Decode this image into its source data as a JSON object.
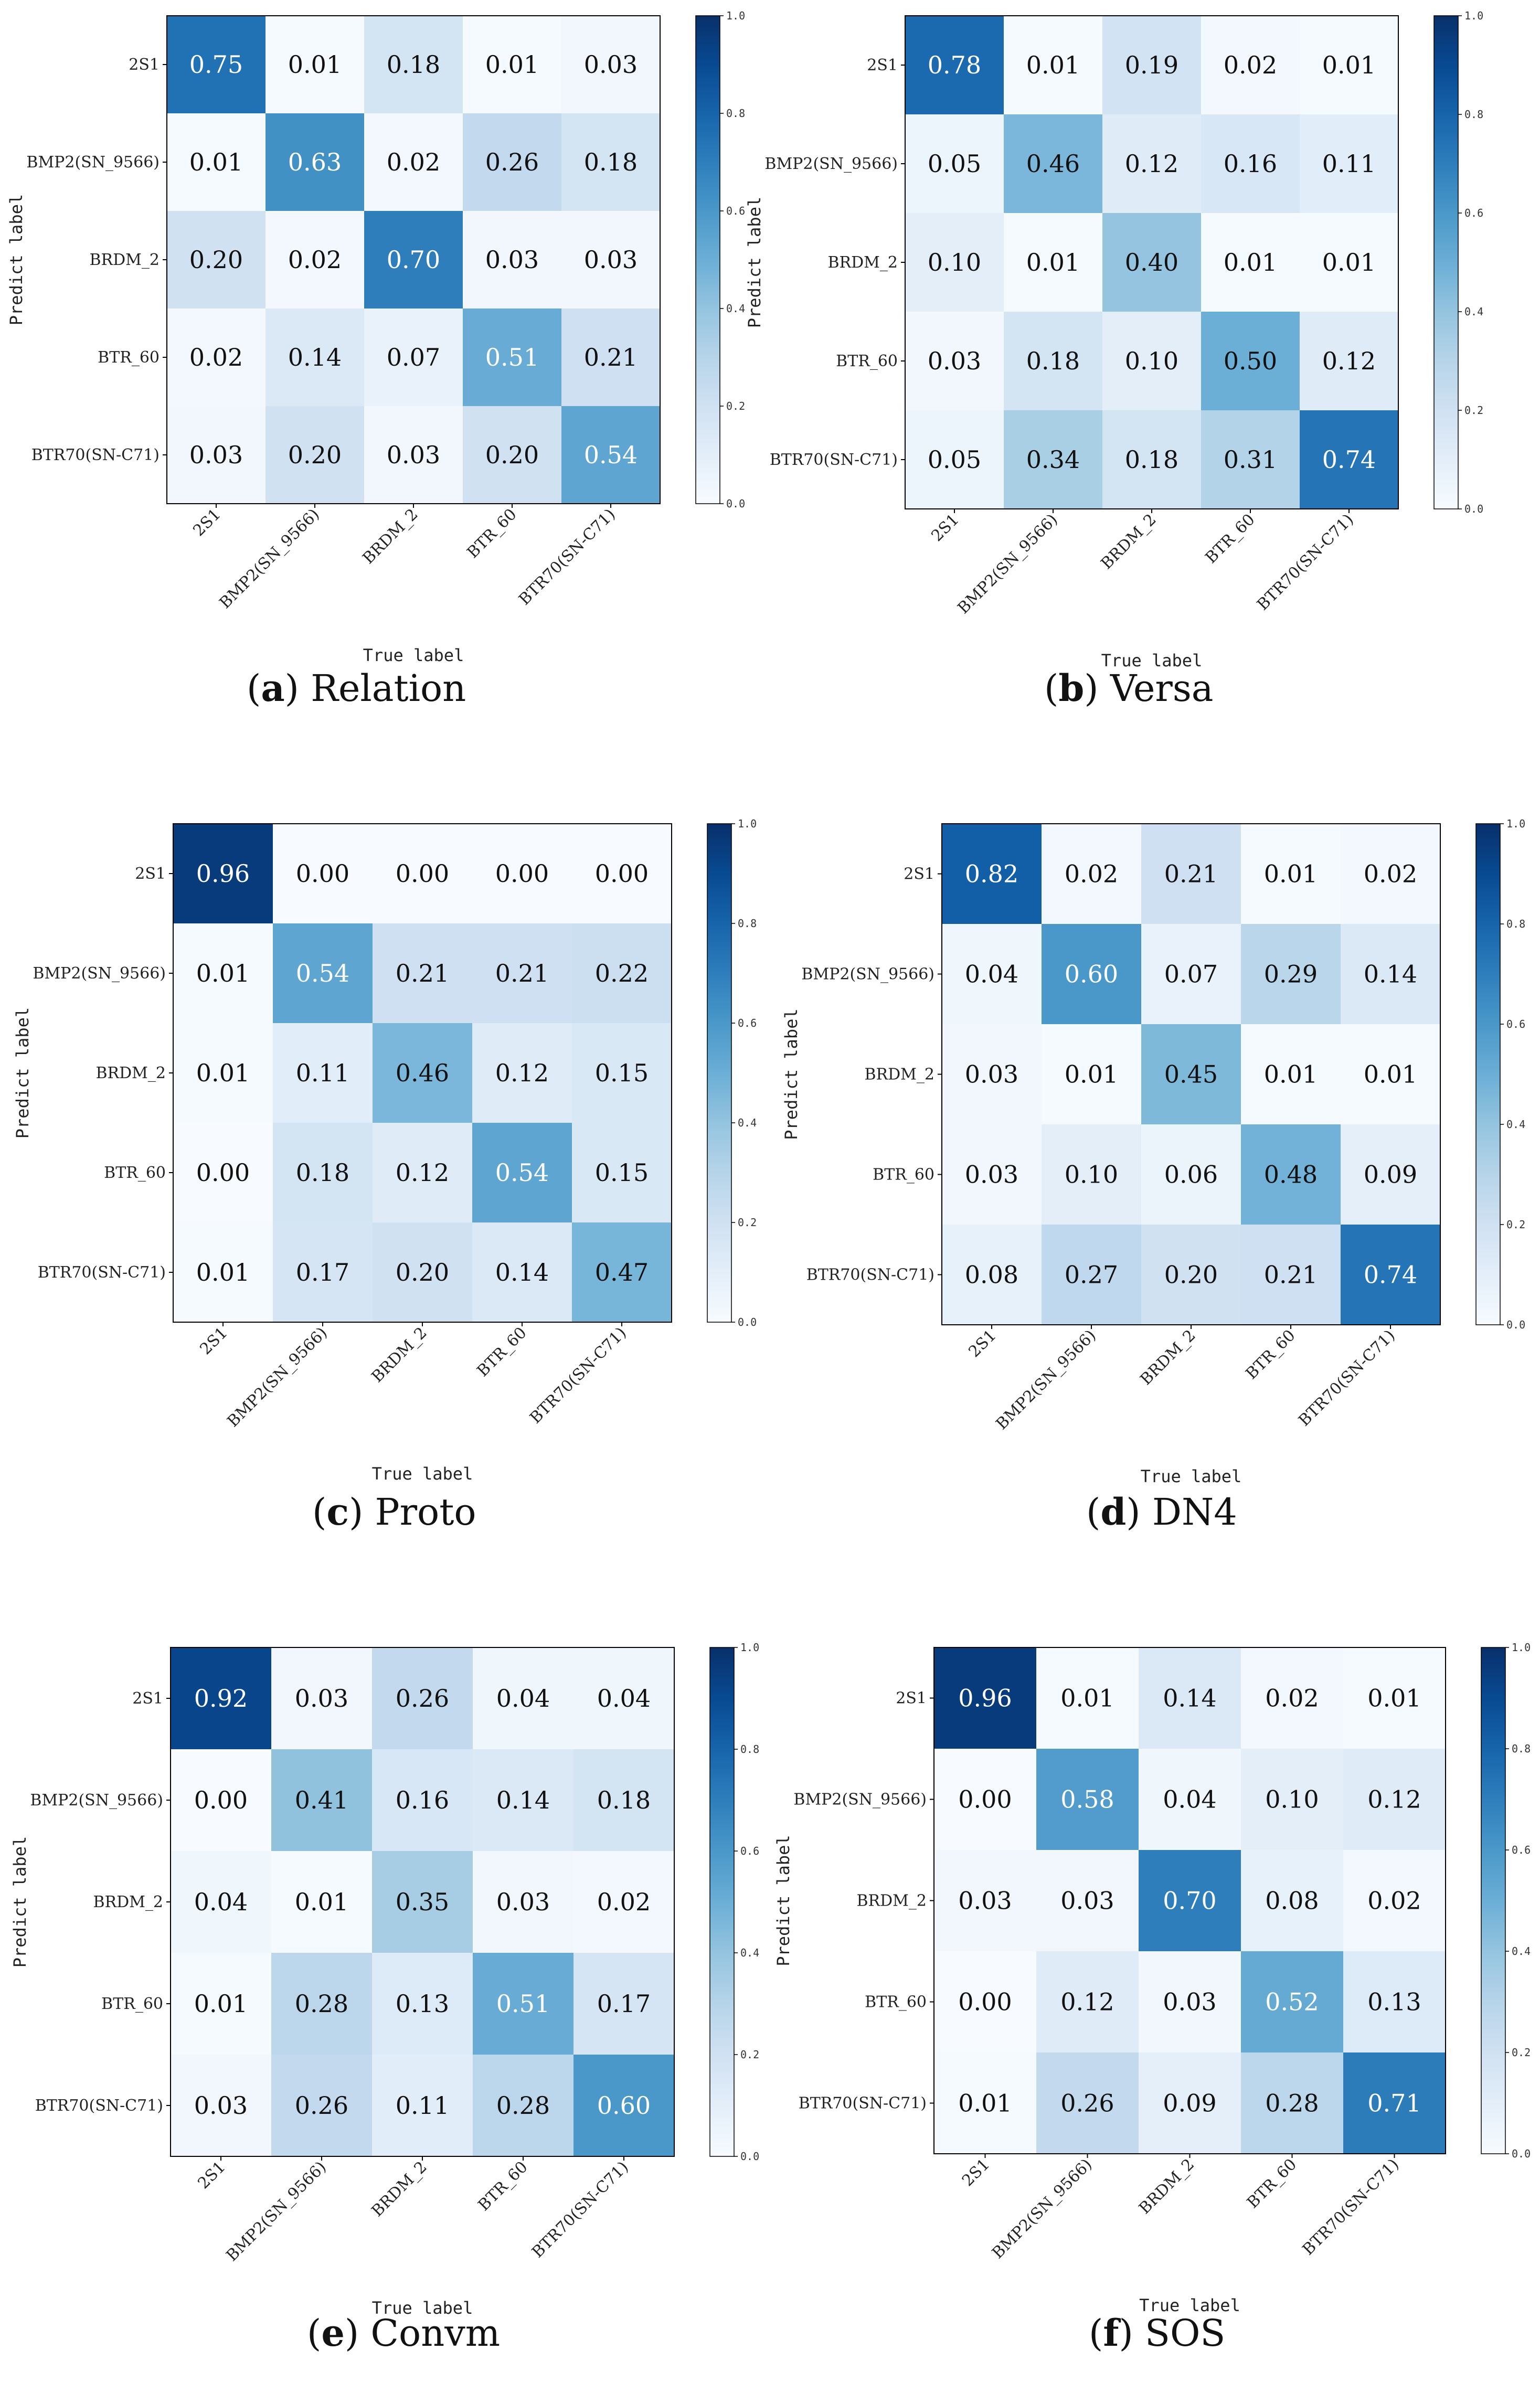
{
  "chart_data": [
    {
      "type": "heatmap",
      "panel": "a",
      "method": "Relation",
      "ylabel": "Predict label",
      "xlabel": "True label",
      "row_labels": [
        "2S1",
        "BMP2(SN_9566)",
        "BRDM_2",
        "BTR_60",
        "BTR70(SN-C71)"
      ],
      "col_labels": [
        "2S1",
        "BMP2(SN_9566)",
        "BRDM_2",
        "BTR_60",
        "BTR70(SN-C71)"
      ],
      "cell_labels": [
        [
          "0.75",
          "0.01",
          "0.18",
          "0.01",
          "0.03"
        ],
        [
          "0.01",
          "0.63",
          "0.02",
          "0.26",
          "0.18"
        ],
        [
          "0.20",
          "0.02",
          "0.70",
          "0.03",
          "0.03"
        ],
        [
          "0.02",
          "0.14",
          "0.07",
          "0.51",
          "0.21"
        ],
        [
          "0.03",
          "0.20",
          "0.03",
          "0.20",
          "0.54"
        ]
      ],
      "values": [
        [
          0.75,
          0.01,
          0.18,
          0.01,
          0.03
        ],
        [
          0.01,
          0.63,
          0.02,
          0.26,
          0.18
        ],
        [
          0.2,
          0.02,
          0.7,
          0.03,
          0.03
        ],
        [
          0.02,
          0.14,
          0.07,
          0.51,
          0.21
        ],
        [
          0.03,
          0.2,
          0.03,
          0.2,
          0.54
        ]
      ],
      "colorbar_ticks": [
        "0.0",
        "0.2",
        "0.4",
        "0.6",
        "0.8",
        "1.0"
      ],
      "vmin": 0,
      "vmax": 1,
      "colormap": {
        "low": "#f7fbff",
        "high": "#08306b"
      }
    },
    {
      "type": "heatmap",
      "panel": "b",
      "method": "Versa",
      "ylabel": "Predict label",
      "xlabel": "True label",
      "row_labels": [
        "2S1",
        "BMP2(SN_9566)",
        "BRDM_2",
        "BTR_60",
        "BTR70(SN-C71)"
      ],
      "col_labels": [
        "2S1",
        "BMP2(SN_9566)",
        "BRDM_2",
        "BTR_60",
        "BTR70(SN-C71)"
      ],
      "cell_labels": [
        [
          "0.78",
          "0.01",
          "0.19",
          "0.02",
          "0.01"
        ],
        [
          "0.05",
          "0.46",
          "0.12",
          "0.16",
          "0.11"
        ],
        [
          "0.10",
          "0.01",
          "0.40",
          "0.01",
          "0.01"
        ],
        [
          "0.03",
          "0.18",
          "0.10",
          "0.50",
          "0.12"
        ],
        [
          "0.05",
          "0.34",
          "0.18",
          "0.31",
          "0.74"
        ]
      ],
      "values": [
        [
          0.78,
          0.01,
          0.19,
          0.02,
          0.01
        ],
        [
          0.05,
          0.46,
          0.12,
          0.16,
          0.11
        ],
        [
          0.1,
          0.01,
          0.4,
          0.01,
          0.01
        ],
        [
          0.03,
          0.18,
          0.1,
          0.5,
          0.12
        ],
        [
          0.05,
          0.34,
          0.18,
          0.31,
          0.74
        ]
      ],
      "colorbar_ticks": [
        "0.0",
        "0.2",
        "0.4",
        "0.6",
        "0.8",
        "1.0"
      ],
      "vmin": 0,
      "vmax": 1,
      "colormap": {
        "low": "#f7fbff",
        "high": "#08306b"
      }
    },
    {
      "type": "heatmap",
      "panel": "c",
      "method": "Proto",
      "ylabel": "Predict label",
      "xlabel": "True label",
      "row_labels": [
        "2S1",
        "BMP2(SN_9566)",
        "BRDM_2",
        "BTR_60",
        "BTR70(SN-C71)"
      ],
      "col_labels": [
        "2S1",
        "BMP2(SN_9566)",
        "BRDM_2",
        "BTR_60",
        "BTR70(SN-C71)"
      ],
      "cell_labels": [
        [
          "0.96",
          "0.00",
          "0.00",
          "0.00",
          "0.00"
        ],
        [
          "0.01",
          "0.54",
          "0.21",
          "0.21",
          "0.22"
        ],
        [
          "0.01",
          "0.11",
          "0.46",
          "0.12",
          "0.15"
        ],
        [
          "0.00",
          "0.18",
          "0.12",
          "0.54",
          "0.15"
        ],
        [
          "0.01",
          "0.17",
          "0.20",
          "0.14",
          "0.47"
        ]
      ],
      "values": [
        [
          0.96,
          0.0,
          0.0,
          0.0,
          0.0
        ],
        [
          0.01,
          0.54,
          0.21,
          0.21,
          0.22
        ],
        [
          0.01,
          0.11,
          0.46,
          0.12,
          0.15
        ],
        [
          0.0,
          0.18,
          0.12,
          0.54,
          0.15
        ],
        [
          0.01,
          0.17,
          0.2,
          0.14,
          0.47
        ]
      ],
      "colorbar_ticks": [
        "0.0",
        "0.2",
        "0.4",
        "0.6",
        "0.8",
        "1.0"
      ],
      "vmin": 0,
      "vmax": 1,
      "colormap": {
        "low": "#f7fbff",
        "high": "#08306b"
      }
    },
    {
      "type": "heatmap",
      "panel": "d",
      "method": "DN4",
      "ylabel": "Predict label",
      "xlabel": "True label",
      "row_labels": [
        "2S1",
        "BMP2(SN_9566)",
        "BRDM_2",
        "BTR_60",
        "BTR70(SN-C71)"
      ],
      "col_labels": [
        "2S1",
        "BMP2(SN_9566)",
        "BRDM_2",
        "BTR_60",
        "BTR70(SN-C71)"
      ],
      "cell_labels": [
        [
          "0.82",
          "0.02",
          "0.21",
          "0.01",
          "0.02"
        ],
        [
          "0.04",
          "0.60",
          "0.07",
          "0.29",
          "0.14"
        ],
        [
          "0.03",
          "0.01",
          "0.45",
          "0.01",
          "0.01"
        ],
        [
          "0.03",
          "0.10",
          "0.06",
          "0.48",
          "0.09"
        ],
        [
          "0.08",
          "0.27",
          "0.20",
          "0.21",
          "0.74"
        ]
      ],
      "values": [
        [
          0.82,
          0.02,
          0.21,
          0.01,
          0.02
        ],
        [
          0.04,
          0.6,
          0.07,
          0.29,
          0.14
        ],
        [
          0.03,
          0.01,
          0.45,
          0.01,
          0.01
        ],
        [
          0.03,
          0.1,
          0.06,
          0.48,
          0.09
        ],
        [
          0.08,
          0.27,
          0.2,
          0.21,
          0.74
        ]
      ],
      "colorbar_ticks": [
        "0.0",
        "0.2",
        "0.4",
        "0.6",
        "0.8",
        "1.0"
      ],
      "vmin": 0,
      "vmax": 1,
      "colormap": {
        "low": "#f7fbff",
        "high": "#08306b"
      }
    },
    {
      "type": "heatmap",
      "panel": "e",
      "method": "Convm",
      "ylabel": "Predict label",
      "xlabel": "True label",
      "row_labels": [
        "2S1",
        "BMP2(SN_9566)",
        "BRDM_2",
        "BTR_60",
        "BTR70(SN-C71)"
      ],
      "col_labels": [
        "2S1",
        "BMP2(SN_9566)",
        "BRDM_2",
        "BTR_60",
        "BTR70(SN-C71)"
      ],
      "cell_labels": [
        [
          "0.92",
          "0.03",
          "0.26",
          "0.04",
          "0.04"
        ],
        [
          "0.00",
          "0.41",
          "0.16",
          "0.14",
          "0.18"
        ],
        [
          "0.04",
          "0.01",
          "0.35",
          "0.03",
          "0.02"
        ],
        [
          "0.01",
          "0.28",
          "0.13",
          "0.51",
          "0.17"
        ],
        [
          "0.03",
          "0.26",
          "0.11",
          "0.28",
          "0.60"
        ]
      ],
      "values": [
        [
          0.92,
          0.03,
          0.26,
          0.04,
          0.04
        ],
        [
          0.0,
          0.41,
          0.16,
          0.14,
          0.18
        ],
        [
          0.04,
          0.01,
          0.35,
          0.03,
          0.02
        ],
        [
          0.01,
          0.28,
          0.13,
          0.51,
          0.17
        ],
        [
          0.03,
          0.26,
          0.11,
          0.28,
          0.6
        ]
      ],
      "colorbar_ticks": [
        "0.0",
        "0.2",
        "0.4",
        "0.6",
        "0.8",
        "1.0"
      ],
      "vmin": 0,
      "vmax": 1,
      "colormap": {
        "low": "#f7fbff",
        "high": "#08306b"
      }
    },
    {
      "type": "heatmap",
      "panel": "f",
      "method": "SOS",
      "ylabel": "Predict label",
      "xlabel": "True label",
      "row_labels": [
        "2S1",
        "BMP2(SN_9566)",
        "BRDM_2",
        "BTR_60",
        "BTR70(SN-C71)"
      ],
      "col_labels": [
        "2S1",
        "BMP2(SN_9566)",
        "BRDM_2",
        "BTR_60",
        "BTR70(SN-C71)"
      ],
      "cell_labels": [
        [
          "0.96",
          "0.01",
          "0.14",
          "0.02",
          "0.01"
        ],
        [
          "0.00",
          "0.58",
          "0.04",
          "0.10",
          "0.12"
        ],
        [
          "0.03",
          "0.03",
          "0.70",
          "0.08",
          "0.02"
        ],
        [
          "0.00",
          "0.12",
          "0.03",
          "0.52",
          "0.13"
        ],
        [
          "0.01",
          "0.26",
          "0.09",
          "0.28",
          "0.71"
        ]
      ],
      "values": [
        [
          0.96,
          0.01,
          0.14,
          0.02,
          0.01
        ],
        [
          0.0,
          0.58,
          0.04,
          0.1,
          0.12
        ],
        [
          0.03,
          0.03,
          0.7,
          0.08,
          0.02
        ],
        [
          0.0,
          0.12,
          0.03,
          0.52,
          0.13
        ],
        [
          0.01,
          0.26,
          0.09,
          0.28,
          0.71
        ]
      ],
      "colorbar_ticks": [
        "0.0",
        "0.2",
        "0.4",
        "0.6",
        "0.8",
        "1.0"
      ],
      "vmin": 0,
      "vmax": 1,
      "colormap": {
        "low": "#f7fbff",
        "high": "#08306b"
      }
    }
  ],
  "captions": [
    {
      "letter": "a",
      "label": "Relation"
    },
    {
      "letter": "b",
      "label": "Versa"
    },
    {
      "letter": "c",
      "label": "Proto"
    },
    {
      "letter": "d",
      "label": "DN4"
    },
    {
      "letter": "e",
      "label": "Convm"
    },
    {
      "letter": "f",
      "label": "SOS"
    }
  ],
  "caption_format": {
    "open": "(",
    "close": ")"
  }
}
